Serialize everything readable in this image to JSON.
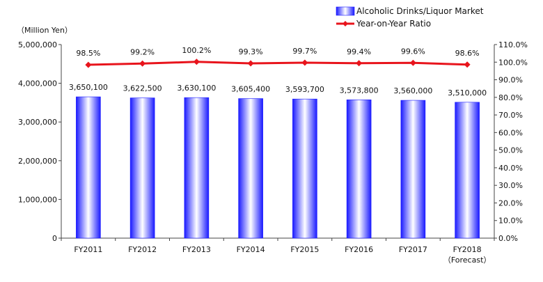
{
  "chart_data": {
    "type": "bar",
    "y_unit_label": "（Million Yen）",
    "categories": [
      "FY2011",
      "FY2012",
      "FY2013",
      "FY2014",
      "FY2015",
      "FY2016",
      "FY2017",
      "FY2018"
    ],
    "category_notes": [
      "",
      "",
      "",
      "",
      "",
      "",
      "",
      "（Forecast）"
    ],
    "series": [
      {
        "name": "Alcoholic Drinks/Liquor Market",
        "type": "bar",
        "axis": "left",
        "values": [
          3650100,
          3622500,
          3630100,
          3605400,
          3593700,
          3573800,
          3560000,
          3510000
        ],
        "labels": [
          "3,650,100",
          "3,622,500",
          "3,630,100",
          "3,605,400",
          "3,593,700",
          "3,573,800",
          "3,560,000",
          "3,510,000"
        ]
      },
      {
        "name": "Year-on-Year Ratio",
        "type": "line",
        "axis": "right",
        "values": [
          98.5,
          99.2,
          100.2,
          99.3,
          99.7,
          99.4,
          99.6,
          98.6
        ],
        "labels": [
          "98.5%",
          "99.2%",
          "100.2%",
          "99.3%",
          "99.7%",
          "99.4%",
          "99.6%",
          "98.6%"
        ]
      }
    ],
    "y_left": {
      "min": 0,
      "max": 5000000,
      "ticks": [
        0,
        1000000,
        2000000,
        3000000,
        4000000,
        5000000
      ],
      "tick_labels": [
        "0",
        "1,000,000",
        "2,000,000",
        "3,000,000",
        "4,000,000",
        "5,000,000"
      ]
    },
    "y_right": {
      "min": 0,
      "max": 110,
      "ticks": [
        0,
        10,
        20,
        30,
        40,
        50,
        60,
        70,
        80,
        90,
        100,
        110
      ],
      "tick_labels": [
        "0.0%",
        "10.0%",
        "20.0%",
        "30.0%",
        "40.0%",
        "50.0%",
        "60.0%",
        "70.0%",
        "80.0%",
        "90.0%",
        "100.0%",
        "110.0%"
      ]
    },
    "grid": false,
    "legend_position": "top-right",
    "colors": {
      "bar_edge": "#1a1aff",
      "bar_center": "#ffffff",
      "line": "#e8141c",
      "axis": "#444444"
    }
  }
}
